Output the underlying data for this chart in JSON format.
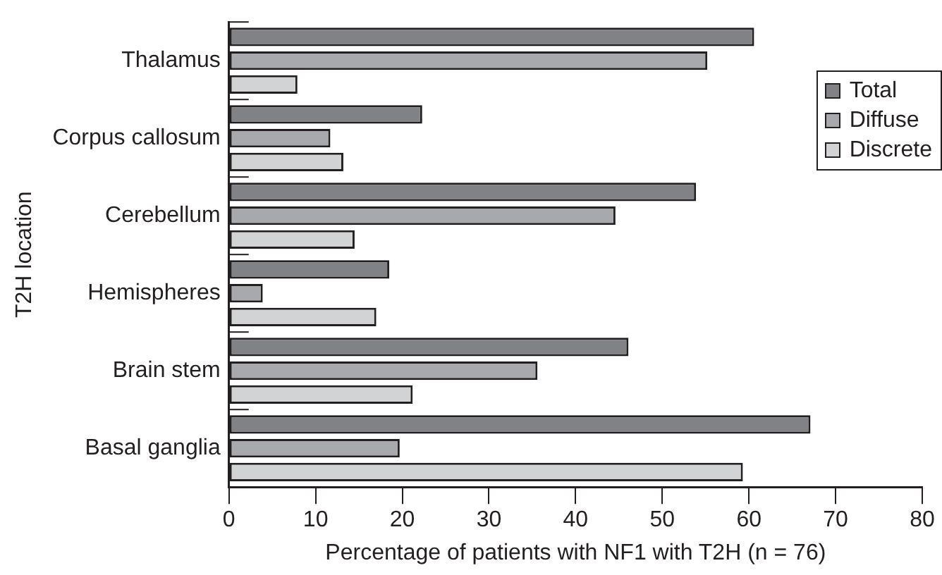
{
  "chart_data": {
    "type": "bar",
    "orientation": "horizontal",
    "xlabel": "Percentage of patients with NF1 with T2H (n = 76)",
    "ylabel": "T2H location",
    "categories": [
      "Thalamus",
      "Corpus callosum",
      "Cerebellum",
      "Hemispheres",
      "Brain stem",
      "Basal ganglia"
    ],
    "series": [
      {
        "name": "Total",
        "color": "#808285",
        "values": [
          60.6,
          22.3,
          53.9,
          18.5,
          46.1,
          67.1
        ]
      },
      {
        "name": "Diffuse",
        "color": "#a7a9ac",
        "values": [
          55.2,
          11.7,
          44.6,
          3.9,
          35.6,
          19.7
        ]
      },
      {
        "name": "Discrete",
        "color": "#d1d3d4",
        "values": [
          7.9,
          13.2,
          14.5,
          17.0,
          21.2,
          59.3
        ]
      }
    ],
    "xlim": [
      0,
      80
    ],
    "xticks": [
      0,
      10,
      20,
      30,
      40,
      50,
      60,
      70,
      80
    ],
    "grid": false,
    "legend": "top right"
  }
}
